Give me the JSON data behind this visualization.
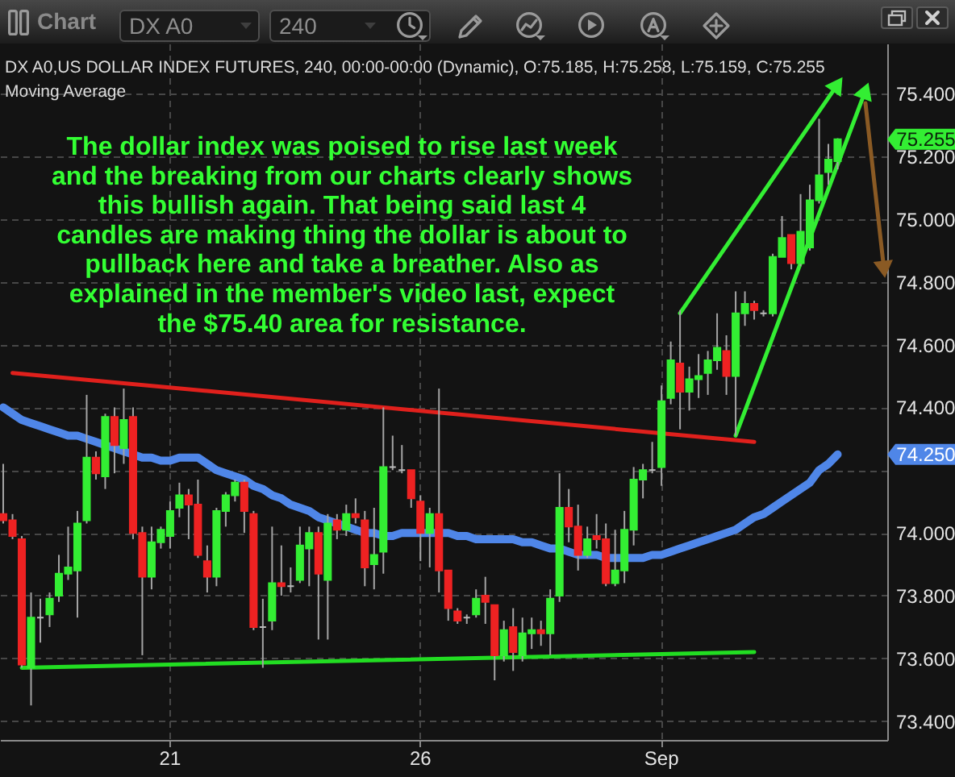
{
  "chart_data": {
    "type": "candlestick",
    "title": "DX A0,US DOLLAR INDEX FUTURES, 240, 00:00-00:00 (Dynamic), O:75.185, H:75.258, L:75.159, C:75.255",
    "subtitle": "Moving Average",
    "categories": [
      null,
      null,
      null,
      null,
      null,
      null,
      null,
      null,
      null,
      null,
      null,
      null,
      null,
      null,
      null,
      null,
      null,
      null,
      "21",
      null,
      null,
      null,
      null,
      null,
      null,
      null,
      null,
      null,
      null,
      null,
      null,
      null,
      null,
      null,
      null,
      null,
      null,
      null,
      null,
      null,
      null,
      null,
      null,
      null,
      null,
      "26",
      null,
      null,
      null,
      null,
      null,
      null,
      null,
      null,
      null,
      null,
      null,
      null,
      null,
      null,
      null,
      null,
      null,
      null,
      null,
      null,
      null,
      null,
      null,
      null,
      null,
      "Sep",
      null,
      null,
      null,
      null,
      null,
      null,
      null,
      null,
      null,
      null,
      null,
      null,
      null,
      null,
      null,
      null,
      null,
      null,
      null,
      null,
      null,
      null,
      null,
      null
    ],
    "ohlc": [
      [
        74.06,
        74.22,
        74.03,
        74.04
      ],
      [
        74.04,
        74.06,
        73.98,
        73.99
      ],
      [
        73.98,
        73.99,
        73.57,
        73.58
      ],
      [
        73.57,
        73.81,
        73.45,
        73.73
      ],
      [
        73.73,
        73.79,
        73.65,
        73.73
      ],
      [
        73.74,
        73.81,
        73.7,
        73.79
      ],
      [
        73.8,
        73.93,
        73.78,
        73.87
      ],
      [
        73.87,
        74.02,
        73.85,
        73.89
      ],
      [
        73.88,
        74.07,
        73.73,
        74.03
      ],
      [
        74.04,
        74.44,
        74.03,
        74.24
      ],
      [
        74.24,
        74.26,
        74.17,
        74.19
      ],
      [
        74.18,
        74.38,
        74.14,
        74.37
      ],
      [
        74.37,
        74.4,
        74.19,
        74.28
      ],
      [
        74.27,
        74.46,
        74.22,
        74.36
      ],
      [
        74.37,
        74.4,
        73.98,
        74.0
      ],
      [
        74.0,
        74.02,
        73.61,
        73.86
      ],
      [
        73.86,
        74.02,
        73.82,
        73.97
      ],
      [
        73.97,
        74.02,
        73.95,
        74.01
      ],
      [
        73.99,
        74.1,
        73.95,
        74.07
      ],
      [
        74.08,
        74.16,
        74.05,
        74.12
      ],
      [
        74.12,
        74.14,
        73.98,
        74.09
      ],
      [
        74.09,
        74.17,
        73.92,
        73.93
      ],
      [
        73.91,
        73.96,
        73.81,
        73.86
      ],
      [
        73.86,
        74.08,
        73.83,
        74.07
      ],
      [
        74.07,
        74.13,
        74.02,
        74.12
      ],
      [
        74.12,
        74.17,
        74.1,
        74.16
      ],
      [
        74.16,
        74.17,
        74.0,
        74.07
      ],
      [
        74.06,
        74.07,
        73.69,
        73.7
      ],
      [
        73.7,
        73.79,
        73.57,
        73.7
      ],
      [
        73.72,
        74.02,
        73.69,
        73.84
      ],
      [
        73.84,
        73.96,
        73.8,
        73.83
      ],
      [
        73.83,
        73.89,
        73.81,
        73.83
      ],
      [
        73.85,
        74.02,
        73.84,
        73.96
      ],
      [
        73.95,
        74.02,
        73.83,
        74.0
      ],
      [
        74.0,
        74.02,
        73.66,
        73.87
      ],
      [
        73.85,
        74.06,
        73.66,
        74.03
      ],
      [
        74.04,
        74.06,
        73.98,
        74.01
      ],
      [
        74.01,
        74.09,
        73.99,
        74.06
      ],
      [
        74.06,
        74.11,
        74.03,
        74.05
      ],
      [
        74.04,
        74.07,
        73.83,
        73.89
      ],
      [
        73.9,
        74.08,
        73.82,
        73.93
      ],
      [
        73.94,
        74.4,
        73.87,
        74.21
      ],
      [
        74.21,
        74.31,
        74.2,
        74.21
      ],
      [
        74.2,
        74.28,
        74.19,
        74.2
      ],
      [
        74.2,
        74.2,
        74.08,
        74.11
      ],
      [
        74.1,
        74.12,
        73.91,
        74.0
      ],
      [
        74.0,
        74.08,
        73.89,
        74.06
      ],
      [
        74.06,
        74.46,
        73.81,
        73.88
      ],
      [
        73.88,
        73.88,
        73.72,
        73.76
      ],
      [
        73.75,
        73.76,
        73.71,
        73.72
      ],
      [
        73.73,
        73.74,
        73.71,
        73.73
      ],
      [
        73.74,
        73.82,
        73.73,
        73.79
      ],
      [
        73.8,
        73.86,
        73.71,
        73.78
      ],
      [
        73.77,
        73.77,
        73.53,
        73.61
      ],
      [
        73.61,
        73.72,
        73.59,
        73.69
      ],
      [
        73.7,
        73.76,
        73.56,
        73.62
      ],
      [
        73.61,
        73.73,
        73.59,
        73.68
      ],
      [
        73.68,
        73.73,
        73.63,
        73.69
      ],
      [
        73.69,
        73.72,
        73.64,
        73.68
      ],
      [
        73.68,
        73.82,
        73.61,
        73.79
      ],
      [
        73.8,
        74.19,
        73.78,
        74.08
      ],
      [
        74.08,
        74.14,
        73.97,
        74.02
      ],
      [
        74.02,
        74.09,
        73.88,
        73.93
      ],
      [
        73.93,
        74.02,
        73.92,
        73.98
      ],
      [
        73.99,
        74.06,
        73.95,
        73.98
      ],
      [
        73.98,
        74.03,
        73.83,
        73.84
      ],
      [
        73.84,
        74.01,
        73.83,
        73.88
      ],
      [
        73.88,
        74.07,
        73.84,
        74.01
      ],
      [
        74.01,
        74.21,
        73.96,
        74.17
      ],
      [
        74.17,
        74.22,
        74.11,
        74.2
      ],
      [
        74.2,
        74.29,
        74.19,
        74.2
      ],
      [
        74.21,
        74.47,
        74.15,
        74.42
      ],
      [
        74.43,
        74.61,
        74.41,
        74.55
      ],
      [
        74.54,
        74.71,
        74.33,
        74.45
      ],
      [
        74.45,
        74.53,
        74.39,
        74.49
      ],
      [
        74.49,
        74.57,
        74.43,
        74.5
      ],
      [
        74.51,
        74.58,
        74.44,
        74.55
      ],
      [
        74.55,
        74.7,
        74.52,
        74.59
      ],
      [
        74.58,
        74.63,
        74.44,
        74.5
      ],
      [
        74.5,
        74.77,
        74.31,
        74.7
      ],
      [
        74.7,
        74.77,
        74.66,
        74.73
      ],
      [
        74.73,
        74.74,
        74.68,
        74.71
      ],
      [
        74.7,
        74.71,
        74.69,
        74.7
      ],
      [
        74.7,
        74.89,
        74.69,
        74.88
      ],
      [
        74.88,
        75.01,
        74.88,
        74.94
      ],
      [
        74.95,
        74.95,
        74.84,
        74.86
      ],
      [
        74.86,
        75.08,
        74.85,
        74.96
      ],
      [
        74.91,
        75.11,
        74.9,
        75.06
      ],
      [
        75.06,
        75.32,
        75.05,
        75.14
      ],
      [
        75.15,
        75.24,
        75.11,
        75.19
      ],
      [
        75.185,
        75.258,
        75.159,
        75.255
      ],
      null,
      null,
      null,
      null,
      null
    ],
    "colors": [
      "#ee2222",
      "#ee2222",
      "#ee2222",
      "#33ee33",
      "#bbbbbb",
      "#33ee33",
      "#33ee33",
      "#33ee33",
      "#33ee33",
      "#33ee33",
      "#ee2222",
      "#33ee33",
      "#ee2222",
      "#33ee33",
      "#ee2222",
      "#ee2222",
      "#33ee33",
      "#33ee33",
      "#33ee33",
      "#33ee33",
      "#ee2222",
      "#ee2222",
      "#ee2222",
      "#33ee33",
      "#33ee33",
      "#33ee33",
      "#ee2222",
      "#ee2222",
      "#bbbbbb",
      "#33ee33",
      "#ee2222",
      "#bbbbbb",
      "#33ee33",
      "#33ee33",
      "#ee2222",
      "#33ee33",
      "#ee2222",
      "#33ee33",
      "#ee2222",
      "#ee2222",
      "#33ee33",
      "#33ee33",
      "#bbbbbb",
      "#bbbbbb",
      "#ee2222",
      "#ee2222",
      "#33ee33",
      "#ee2222",
      "#ee2222",
      "#ee2222",
      "#bbbbbb",
      "#33ee33",
      "#ee2222",
      "#ee2222",
      "#33ee33",
      "#ee2222",
      "#33ee33",
      "#33ee33",
      "#ee2222",
      "#33ee33",
      "#33ee33",
      "#ee2222",
      "#ee2222",
      "#33ee33",
      "#ee2222",
      "#ee2222",
      "#33ee33",
      "#33ee33",
      "#33ee33",
      "#33ee33",
      "#bbbbbb",
      "#33ee33",
      "#33ee33",
      "#ee2222",
      "#33ee33",
      "#33ee33",
      "#33ee33",
      "#33ee33",
      "#ee2222",
      "#33ee33",
      "#33ee33",
      "#ee2222",
      "#bbbbbb",
      "#33ee33",
      "#33ee33",
      "#ee2222",
      "#33ee33",
      "#33ee33",
      "#33ee33",
      "#33ee33",
      "#33ee33",
      null,
      null,
      null,
      null,
      null
    ],
    "series": [
      {
        "type": "line",
        "color": "#4f86e8",
        "values": [
          74.4,
          74.38,
          74.36,
          74.35,
          74.34,
          74.33,
          74.32,
          74.31,
          74.31,
          74.3,
          74.29,
          74.28,
          74.27,
          74.26,
          74.25,
          74.24,
          74.24,
          74.23,
          74.23,
          74.24,
          74.24,
          74.24,
          74.22,
          74.2,
          74.19,
          74.18,
          74.17,
          74.15,
          74.14,
          74.12,
          74.11,
          74.09,
          74.08,
          74.07,
          74.05,
          74.04,
          74.03,
          74.02,
          74.01,
          74.0,
          74.0,
          73.99,
          73.99,
          74.0,
          74.0,
          74.0,
          74.0,
          74.0,
          74.0,
          73.99,
          73.99,
          73.98,
          73.98,
          73.98,
          73.98,
          73.98,
          73.97,
          73.97,
          73.96,
          73.95,
          73.95,
          73.94,
          73.93,
          73.93,
          73.93,
          73.92,
          73.92,
          73.92,
          73.92,
          73.92,
          73.93,
          73.93,
          73.94,
          73.95,
          73.96,
          73.97,
          73.98,
          73.99,
          74.0,
          74.01,
          74.03,
          74.05,
          74.06,
          74.08,
          74.1,
          74.12,
          74.14,
          74.16,
          74.2,
          74.22,
          74.25,
          null,
          null,
          null,
          null,
          null
        ]
      },
      {
        "type": "line",
        "color": "#e0201c",
        "values": [
          null,
          74.51,
          null,
          null,
          null,
          null,
          null,
          null,
          null,
          null,
          null,
          null,
          null,
          null,
          null,
          null,
          null,
          null,
          null,
          null,
          null,
          null,
          null,
          null,
          null,
          null,
          null,
          null,
          null,
          null,
          null,
          null,
          null,
          null,
          null,
          null,
          null,
          null,
          null,
          null,
          null,
          null,
          null,
          null,
          null,
          null,
          null,
          null,
          null,
          null,
          null,
          null,
          null,
          null,
          null,
          null,
          null,
          null,
          null,
          null,
          null,
          null,
          null,
          null,
          null,
          null,
          null,
          null,
          null,
          null,
          null,
          null,
          null,
          null,
          null,
          null,
          null,
          null,
          null,
          null,
          null,
          74.29,
          null,
          null,
          null,
          null,
          null,
          null,
          null,
          null,
          null,
          null,
          null,
          null,
          null,
          null
        ]
      },
      {
        "type": "line",
        "color": "#22dd22",
        "values": [
          null,
          null,
          73.57,
          null,
          null,
          null,
          null,
          null,
          null,
          null,
          null,
          null,
          null,
          null,
          null,
          null,
          null,
          null,
          null,
          null,
          null,
          null,
          null,
          null,
          null,
          null,
          null,
          null,
          null,
          null,
          null,
          null,
          null,
          null,
          null,
          null,
          null,
          null,
          null,
          null,
          null,
          null,
          null,
          null,
          null,
          null,
          null,
          null,
          null,
          null,
          null,
          null,
          null,
          null,
          null,
          null,
          null,
          null,
          null,
          null,
          null,
          null,
          null,
          null,
          null,
          null,
          null,
          null,
          null,
          null,
          null,
          null,
          null,
          null,
          null,
          null,
          null,
          null,
          null,
          null,
          null,
          73.62,
          null,
          null,
          null,
          null,
          null,
          null,
          null,
          null,
          null,
          null,
          null,
          null,
          null,
          null
        ]
      },
      {
        "type": "line",
        "color": "#33ee33",
        "marker": "triangle",
        "values": [
          null,
          null,
          null,
          null,
          null,
          null,
          null,
          null,
          null,
          null,
          null,
          null,
          null,
          null,
          null,
          null,
          null,
          null,
          null,
          null,
          null,
          null,
          null,
          null,
          null,
          null,
          null,
          null,
          null,
          null,
          null,
          null,
          null,
          null,
          null,
          null,
          null,
          null,
          null,
          null,
          null,
          null,
          null,
          null,
          null,
          null,
          null,
          null,
          null,
          null,
          null,
          null,
          null,
          null,
          null,
          null,
          null,
          null,
          null,
          null,
          null,
          null,
          null,
          null,
          null,
          null,
          null,
          null,
          null,
          null,
          null,
          null,
          null,
          74.7,
          null,
          null,
          null,
          null,
          null,
          null,
          null,
          null,
          null,
          null,
          null,
          null,
          null,
          null,
          null,
          null,
          75.43,
          null,
          null,
          null,
          null,
          null
        ]
      },
      {
        "type": "line",
        "color": "#33ee33",
        "marker": "triangle",
        "values": [
          null,
          null,
          null,
          null,
          null,
          null,
          null,
          null,
          null,
          null,
          null,
          null,
          null,
          null,
          null,
          null,
          null,
          null,
          null,
          null,
          null,
          null,
          null,
          null,
          null,
          null,
          null,
          null,
          null,
          null,
          null,
          null,
          null,
          null,
          null,
          null,
          null,
          null,
          null,
          null,
          null,
          null,
          null,
          null,
          null,
          null,
          null,
          null,
          null,
          null,
          null,
          null,
          null,
          null,
          null,
          null,
          null,
          null,
          null,
          null,
          null,
          null,
          null,
          null,
          null,
          null,
          null,
          null,
          null,
          null,
          null,
          null,
          null,
          null,
          null,
          null,
          null,
          null,
          null,
          74.31,
          null,
          null,
          null,
          null,
          null,
          null,
          null,
          null,
          null,
          null,
          null,
          null,
          null,
          75.41,
          null,
          null
        ]
      },
      {
        "type": "line",
        "color": "#8a5a24",
        "marker": "triangle",
        "values": [
          null,
          null,
          null,
          null,
          null,
          null,
          null,
          null,
          null,
          null,
          null,
          null,
          null,
          null,
          null,
          null,
          null,
          null,
          null,
          null,
          null,
          null,
          null,
          null,
          null,
          null,
          null,
          null,
          null,
          null,
          null,
          null,
          null,
          null,
          null,
          null,
          null,
          null,
          null,
          null,
          null,
          null,
          null,
          null,
          null,
          null,
          null,
          null,
          null,
          null,
          null,
          null,
          null,
          null,
          null,
          null,
          null,
          null,
          null,
          null,
          null,
          null,
          null,
          null,
          null,
          null,
          null,
          null,
          null,
          null,
          null,
          null,
          null,
          null,
          null,
          null,
          null,
          null,
          null,
          null,
          null,
          null,
          null,
          null,
          null,
          null,
          null,
          null,
          null,
          null,
          null,
          null,
          null,
          75.37,
          null,
          74.84
        ]
      }
    ],
    "ylim": [
      73.34,
      75.56
    ],
    "yticks": [
      {
        "value": 73.4,
        "label": "73.400"
      },
      {
        "value": 73.6,
        "label": "73.600"
      },
      {
        "value": 73.8,
        "label": "73.800"
      },
      {
        "value": 74.0,
        "label": "74.000"
      },
      {
        "value": 74.2,
        "label": null
      },
      {
        "value": 74.4,
        "label": "74.400"
      },
      {
        "value": 74.6,
        "label": "74.600"
      },
      {
        "value": 74.8,
        "label": "74.800"
      },
      {
        "value": 75.0,
        "label": "75.000"
      },
      {
        "value": 75.2,
        "label": "75.200"
      },
      {
        "value": 75.4,
        "label": "75.400"
      }
    ],
    "grid": true,
    "annotations": [
      "Chart",
      "DX A0",
      "240",
      "The dollar index was poised to rise last week\nand the breaking from our charts clearly shows\nthis bullish again. That being said last 4\ncandles are making thing the dollar is about to\npullback here and take a breather. Also as\nexplained in the member's video last, expect\nthe $75.40 area for resistance.",
      "75.255",
      "74.250"
    ]
  }
}
